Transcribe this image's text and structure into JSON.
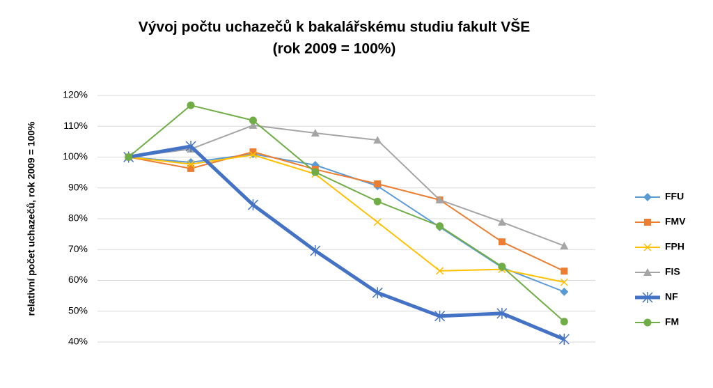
{
  "chart_data": {
    "type": "line",
    "title": "Vývoj počtu uchazečů k bakalářskému studiu fakult VŠE",
    "subtitle": "(rok 2009 = 100%)",
    "y_label": "relativní počet uchazečů, rok 2009 = 100%",
    "categories": [
      null,
      null,
      null,
      null,
      null,
      null,
      null,
      null
    ],
    "series": [
      {
        "name": "FFU",
        "color": "#5b9bd5",
        "marker": "diamond",
        "width": 2,
        "values": [
          100,
          98.3,
          101,
          97.4,
          90.6,
          77.3,
          64.2,
          56.3
        ]
      },
      {
        "name": "FMV",
        "color": "#ed7d31",
        "marker": "square",
        "width": 2,
        "values": [
          100,
          96.3,
          101.7,
          96,
          91.3,
          86.1,
          72.5,
          63
        ]
      },
      {
        "name": "FPH",
        "color": "#ffc000",
        "marker": "x",
        "width": 2,
        "values": [
          100,
          97.7,
          100.7,
          94.5,
          78.9,
          63.1,
          63.6,
          59.4
        ]
      },
      {
        "name": "FIS",
        "color": "#a5a5a5",
        "marker": "triangle",
        "width": 2,
        "values": [
          100,
          102.6,
          110.3,
          107.8,
          105.5,
          86.1,
          78.9,
          71.2
        ]
      },
      {
        "name": "NF",
        "color": "#4472c4",
        "marker": "star",
        "width": 5,
        "values": [
          100,
          103.5,
          84.5,
          69.6,
          56,
          48.4,
          49.3,
          40.9
        ]
      },
      {
        "name": "FM",
        "color": "#70ad47",
        "marker": "circle",
        "width": 2,
        "values": [
          100,
          116.8,
          111.9,
          95.1,
          85.6,
          77.6,
          64.5,
          46.6
        ]
      }
    ],
    "ylim": [
      40,
      120
    ],
    "yticks": [
      {
        "value": 40,
        "label": "40%"
      },
      {
        "value": 50,
        "label": "50%"
      },
      {
        "value": 60,
        "label": "60%"
      },
      {
        "value": 70,
        "label": "70%"
      },
      {
        "value": 80,
        "label": "80%"
      },
      {
        "value": 90,
        "label": "90%"
      },
      {
        "value": 100,
        "label": "100%"
      },
      {
        "value": 110,
        "label": "110%"
      },
      {
        "value": 120,
        "label": "120%"
      }
    ],
    "grid": true,
    "legend": "right"
  }
}
